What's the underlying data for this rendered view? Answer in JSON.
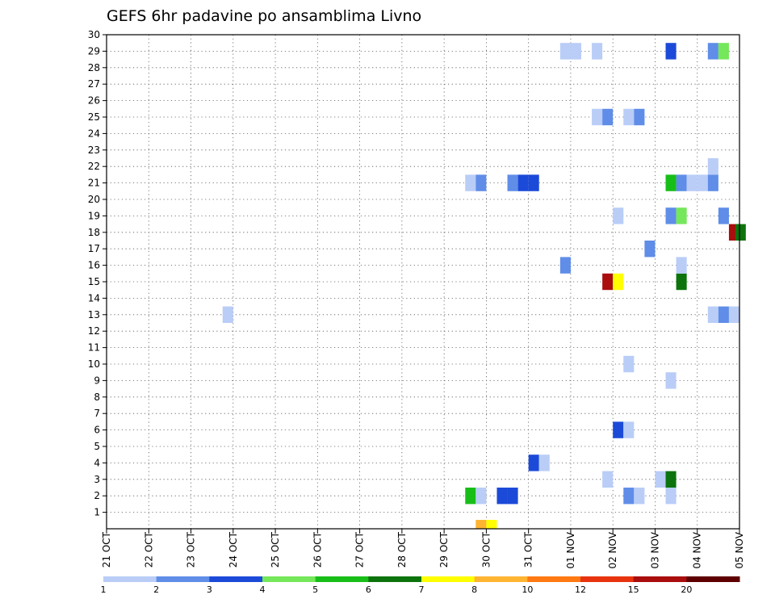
{
  "chart_data": {
    "type": "heatmap",
    "title": "GEFS 6hr padavine po ansamblima Livno",
    "xlabel": "",
    "ylabel": "",
    "y_ticks": [
      1,
      2,
      3,
      4,
      5,
      6,
      7,
      8,
      9,
      10,
      11,
      12,
      13,
      14,
      15,
      16,
      17,
      18,
      19,
      20,
      21,
      22,
      23,
      24,
      25,
      26,
      27,
      28,
      29,
      30
    ],
    "ylim": [
      0,
      30
    ],
    "x_ticks": [
      "21 OCT",
      "22 OCT",
      "23 OCT",
      "24 OCT",
      "25 OCT",
      "26 OCT",
      "27 OCT",
      "28 OCT",
      "29 OCT",
      "30 OCT",
      "31 OCT",
      "01 NOV",
      "02 NOV",
      "03 NOV",
      "04 NOV",
      "05 NOV"
    ],
    "xlim": [
      0,
      15
    ],
    "x_unit": "days since 21 OCT, 00Z; cells are 6-hour periods",
    "grid": true,
    "colorbar": {
      "labels": [
        "1",
        "2",
        "3",
        "4",
        "5",
        "6",
        "7",
        "8",
        "10",
        "12",
        "15",
        "20"
      ],
      "colors": [
        "#b9cdf7",
        "#5f8de8",
        "#1c4ad8",
        "#75e75a",
        "#18be18",
        "#0d740d",
        "#ffff00",
        "#ffb432",
        "#ff7a12",
        "#e8340e",
        "#aa0d0d",
        "#5e0000"
      ]
    },
    "cells": [
      {
        "x": 2.75,
        "y": 13,
        "c": 0
      },
      {
        "x": 8.5,
        "y": 2,
        "c": 4
      },
      {
        "x": 8.75,
        "y": 2,
        "c": 0
      },
      {
        "x": 9.25,
        "y": 2,
        "c": 2
      },
      {
        "x": 9.5,
        "y": 2,
        "c": 2
      },
      {
        "x": 12.25,
        "y": 2,
        "c": 1
      },
      {
        "x": 12.5,
        "y": 2,
        "c": 0
      },
      {
        "x": 13.25,
        "y": 2,
        "c": 0
      },
      {
        "x": 11.75,
        "y": 3,
        "c": 0
      },
      {
        "x": 13.0,
        "y": 3,
        "c": 0
      },
      {
        "x": 13.25,
        "y": 3,
        "c": 5
      },
      {
        "x": 10.0,
        "y": 4,
        "c": 2
      },
      {
        "x": 10.25,
        "y": 4,
        "c": 0
      },
      {
        "x": 12.0,
        "y": 6,
        "c": 2
      },
      {
        "x": 12.25,
        "y": 6,
        "c": 0
      },
      {
        "x": 13.25,
        "y": 9,
        "c": 0
      },
      {
        "x": 12.25,
        "y": 10,
        "c": 0
      },
      {
        "x": 14.25,
        "y": 13,
        "c": 0
      },
      {
        "x": 14.5,
        "y": 13,
        "c": 1
      },
      {
        "x": 14.75,
        "y": 13,
        "c": 0
      },
      {
        "x": 11.75,
        "y": 15,
        "c": 10
      },
      {
        "x": 12.0,
        "y": 15,
        "c": 6
      },
      {
        "x": 13.5,
        "y": 15,
        "c": 5
      },
      {
        "x": 10.75,
        "y": 16,
        "c": 1
      },
      {
        "x": 13.5,
        "y": 16,
        "c": 0
      },
      {
        "x": 12.75,
        "y": 17,
        "c": 1
      },
      {
        "x": 14.75,
        "y": 18,
        "c": 10
      },
      {
        "x": 14.9,
        "y": 18,
        "c": 5
      },
      {
        "x": 12.0,
        "y": 19,
        "c": 0
      },
      {
        "x": 13.25,
        "y": 19,
        "c": 1
      },
      {
        "x": 13.5,
        "y": 19,
        "c": 3
      },
      {
        "x": 14.5,
        "y": 19,
        "c": 1
      },
      {
        "x": 8.5,
        "y": 21,
        "c": 0
      },
      {
        "x": 8.75,
        "y": 21,
        "c": 1
      },
      {
        "x": 9.5,
        "y": 21,
        "c": 1
      },
      {
        "x": 9.75,
        "y": 21,
        "c": 2
      },
      {
        "x": 10.0,
        "y": 21,
        "c": 2
      },
      {
        "x": 13.25,
        "y": 21,
        "c": 4
      },
      {
        "x": 13.5,
        "y": 21,
        "c": 1
      },
      {
        "x": 13.75,
        "y": 21,
        "c": 0
      },
      {
        "x": 14.0,
        "y": 21,
        "c": 0
      },
      {
        "x": 14.25,
        "y": 21,
        "c": 1
      },
      {
        "x": 14.25,
        "y": 22,
        "c": 0
      },
      {
        "x": 11.5,
        "y": 25,
        "c": 0
      },
      {
        "x": 11.75,
        "y": 25,
        "c": 1
      },
      {
        "x": 12.25,
        "y": 25,
        "c": 0
      },
      {
        "x": 12.5,
        "y": 25,
        "c": 1
      },
      {
        "x": 10.75,
        "y": 29,
        "c": 0
      },
      {
        "x": 11.0,
        "y": 29,
        "c": 0
      },
      {
        "x": 11.5,
        "y": 29,
        "c": 0
      },
      {
        "x": 13.25,
        "y": 29,
        "c": 2
      },
      {
        "x": 14.25,
        "y": 29,
        "c": 1
      },
      {
        "x": 14.5,
        "y": 29,
        "c": 3
      }
    ],
    "bottom_strip": [
      {
        "x": 8.75,
        "c": 7
      },
      {
        "x": 9.0,
        "c": 6
      }
    ]
  }
}
